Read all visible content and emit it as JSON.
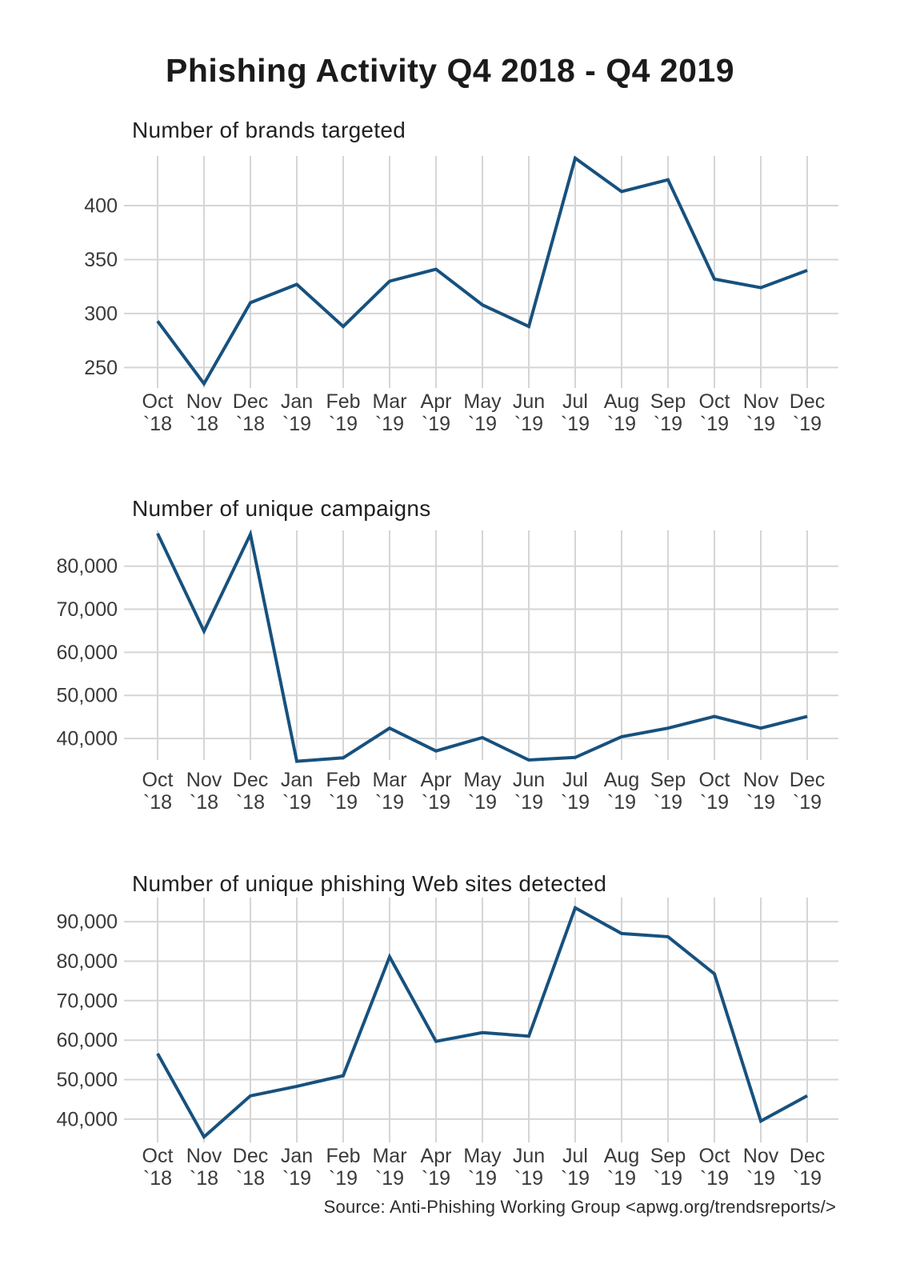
{
  "page": {
    "title": "Phishing Activity Q4 2018 - Q4 2019",
    "source_note": "Source: Anti-Phishing Working Group <apwg.org/trendsreports/>"
  },
  "colors": {
    "line": "#17517E",
    "grid": "#D5D5D5",
    "title_text": "#1B1B1B",
    "tick_text": "#3A3A3A",
    "background": "#FFFFFF"
  },
  "chart_data": [
    {
      "type": "line",
      "title": "Number of brands targeted",
      "categories": [
        "Oct `18",
        "Nov `18",
        "Dec `18",
        "Jan `19",
        "Feb `19",
        "Mar `19",
        "Apr `19",
        "May `19",
        "Jun `19",
        "Jul `19",
        "Aug `19",
        "Sep `19",
        "Oct `19",
        "Nov `19",
        "Dec `19"
      ],
      "values": [
        293,
        235,
        310,
        327,
        288,
        330,
        341,
        308,
        288,
        444,
        413,
        424,
        332,
        324,
        340
      ],
      "yticks": [
        250,
        300,
        350,
        400
      ],
      "ytick_labels": [
        "250",
        "300",
        "350",
        "400"
      ],
      "ylim": [
        231,
        446
      ],
      "xlabel": "",
      "ylabel": "",
      "grid": true,
      "legend": "none"
    },
    {
      "type": "line",
      "title": "Number of unique campaigns",
      "categories": [
        "Oct `18",
        "Nov `18",
        "Dec `18",
        "Jan `19",
        "Feb `19",
        "Mar `19",
        "Apr `19",
        "May `19",
        "Jun `19",
        "Jul `19",
        "Aug `19",
        "Sep `19",
        "Oct `19",
        "Nov `19",
        "Dec `19"
      ],
      "values": [
        87600,
        64900,
        87400,
        34700,
        35500,
        42400,
        37100,
        40200,
        35000,
        35600,
        40400,
        42400,
        45100,
        42400,
        45100
      ],
      "yticks": [
        40000,
        50000,
        60000,
        70000,
        80000
      ],
      "ytick_labels": [
        "40,000",
        "50,000",
        "60,000",
        "70,000",
        "80,000"
      ],
      "ylim": [
        35000,
        88300
      ],
      "xlabel": "",
      "ylabel": "",
      "grid": true,
      "legend": "none"
    },
    {
      "type": "line",
      "title": "Number of unique phishing Web sites detected",
      "categories": [
        "Oct `18",
        "Nov `18",
        "Dec `18",
        "Jan `19",
        "Feb `19",
        "Mar `19",
        "Apr `19",
        "May `19",
        "Jun `19",
        "Jul `19",
        "Aug `19",
        "Sep `19",
        "Oct `19",
        "Nov `19",
        "Dec `19"
      ],
      "values": [
        56600,
        35500,
        45900,
        48300,
        51000,
        81100,
        59700,
        61900,
        61000,
        93500,
        87000,
        86200,
        76800,
        39500,
        45900
      ],
      "yticks": [
        40000,
        50000,
        60000,
        70000,
        80000,
        90000
      ],
      "ytick_labels": [
        "40,000",
        "50,000",
        "60,000",
        "70,000",
        "80,000",
        "90,000"
      ],
      "ylim": [
        34100,
        96100
      ],
      "xlabel": "",
      "ylabel": "",
      "grid": true,
      "legend": "none"
    }
  ]
}
